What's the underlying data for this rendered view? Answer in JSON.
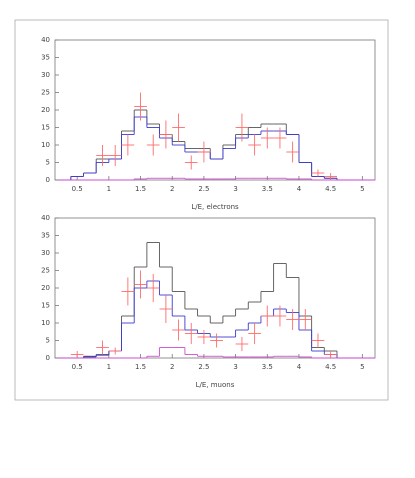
{
  "chart_data": [
    {
      "type": "histogram",
      "xlabel": "L/E, electrons",
      "xlim": [
        0.15,
        5.2
      ],
      "ylim": [
        0,
        40
      ],
      "xticks": [
        0.5,
        1,
        1.5,
        2,
        2.5,
        3,
        3.5,
        4,
        4.5,
        5
      ],
      "yticks": [
        0,
        5,
        10,
        15,
        20,
        25,
        30,
        35,
        40
      ],
      "bins": [
        0.2,
        0.4,
        0.6,
        0.8,
        1.0,
        1.2,
        1.4,
        1.6,
        1.8,
        2.0,
        2.2,
        2.4,
        2.6,
        2.8,
        3.0,
        3.2,
        3.4,
        3.6,
        3.8,
        4.0,
        4.2,
        4.4,
        4.6,
        4.8,
        5.0,
        5.2
      ],
      "series": [
        {
          "color": "#555555",
          "values": [
            0,
            1,
            2,
            6,
            6,
            14,
            20,
            16,
            13,
            11,
            9,
            9,
            6,
            10,
            13,
            15,
            16,
            16,
            13,
            5,
            1,
            0.5,
            0,
            0,
            0
          ]
        },
        {
          "color": "#3b3bd0",
          "values": [
            0,
            1,
            2,
            5,
            6,
            13,
            18,
            15,
            12,
            10,
            8,
            8,
            6,
            9,
            12,
            13,
            14,
            14,
            13,
            5,
            1,
            0.5,
            0,
            0,
            0
          ]
        },
        {
          "color": "#d04cd0",
          "values": [
            0,
            0,
            0,
            0,
            0,
            0,
            0.3,
            0.5,
            0.5,
            0.5,
            0.3,
            0.3,
            0.3,
            0.3,
            0.5,
            0.5,
            0.5,
            0.5,
            0.3,
            0.3,
            0,
            0,
            0,
            0,
            0
          ]
        }
      ],
      "points": {
        "color": "#ff6b6b",
        "xerr": 0.1,
        "x": [
          0.9,
          1.1,
          1.3,
          1.5,
          1.7,
          1.9,
          2.1,
          2.3,
          2.5,
          3.1,
          3.3,
          3.5,
          3.7,
          3.9,
          4.3,
          4.5
        ],
        "values": [
          7,
          7,
          10,
          21,
          10,
          13,
          15,
          5,
          8,
          15,
          10,
          12,
          12,
          8,
          2,
          1
        ],
        "yerr": [
          3,
          3,
          3,
          4,
          3,
          4,
          4,
          2,
          3,
          4,
          3,
          3,
          3,
          3,
          1,
          1
        ]
      }
    },
    {
      "type": "histogram",
      "xlabel": "L/E, muons",
      "xlim": [
        0.15,
        5.2
      ],
      "ylim": [
        0,
        40
      ],
      "xticks": [
        0.5,
        1,
        1.5,
        2,
        2.5,
        3,
        3.5,
        4,
        4.5,
        5
      ],
      "yticks": [
        0,
        5,
        10,
        15,
        20,
        25,
        30,
        35,
        40
      ],
      "bins": [
        0.2,
        0.4,
        0.6,
        0.8,
        1.0,
        1.2,
        1.4,
        1.6,
        1.8,
        2.0,
        2.2,
        2.4,
        2.6,
        2.8,
        3.0,
        3.2,
        3.4,
        3.6,
        3.8,
        4.0,
        4.2,
        4.4,
        4.6,
        4.8,
        5.0,
        5.2
      ],
      "series": [
        {
          "color": "#555555",
          "values": [
            0,
            0,
            0.5,
            1,
            2,
            12,
            26,
            33,
            26,
            19,
            14,
            12,
            10,
            12,
            14,
            16,
            19,
            27,
            23,
            12,
            3,
            2,
            0,
            0,
            0
          ]
        },
        {
          "color": "#3b3bd0",
          "values": [
            0,
            0,
            0.3,
            0.8,
            2,
            10,
            20,
            22,
            18,
            12,
            8,
            7,
            6,
            6,
            8,
            10,
            12,
            14,
            13,
            8,
            2,
            1,
            0,
            0,
            0
          ]
        },
        {
          "color": "#d04cd0",
          "values": [
            0,
            0,
            0,
            0,
            0,
            0,
            0,
            0.5,
            3,
            3,
            1,
            0.5,
            0.5,
            0.3,
            0.3,
            0.3,
            0.3,
            0.5,
            0.5,
            0.3,
            0,
            0,
            0,
            0,
            0
          ]
        }
      ],
      "points": {
        "color": "#ff6b6b",
        "xerr": 0.1,
        "x": [
          0.5,
          0.9,
          1.1,
          1.3,
          1.5,
          1.7,
          1.9,
          2.1,
          2.3,
          2.5,
          2.7,
          3.1,
          3.3,
          3.5,
          3.7,
          3.9,
          4.1,
          4.3,
          4.5
        ],
        "values": [
          1,
          3,
          2,
          19,
          21,
          20,
          14,
          8,
          7,
          6,
          5,
          4,
          7,
          12,
          12,
          11,
          11,
          5,
          1
        ],
        "yerr": [
          1,
          2,
          1,
          4,
          4,
          4,
          4,
          3,
          3,
          2,
          2,
          2,
          3,
          3,
          3,
          3,
          3,
          2,
          1
        ]
      }
    }
  ]
}
